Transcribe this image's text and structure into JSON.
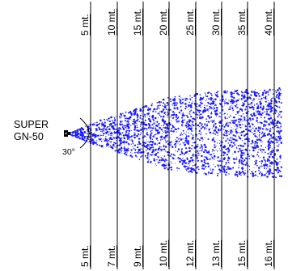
{
  "nozzle": {
    "name_line1": "SUPER",
    "name_line2": "GN-50",
    "angle_label": "30°"
  },
  "distances": [
    {
      "distance": "5 mt.",
      "width": "5 mt."
    },
    {
      "distance": "10 mt.",
      "width": "7 mt."
    },
    {
      "distance": "15 mt.",
      "width": "9 mt."
    },
    {
      "distance": "20 mt.",
      "width": "10 mt."
    },
    {
      "distance": "25 mt.",
      "width": "12 mt."
    },
    {
      "distance": "30 mt.",
      "width": "13 mt."
    },
    {
      "distance": "35 mt.",
      "width": "15 mt."
    },
    {
      "distance": "40 mt.",
      "width": "16 mt."
    }
  ],
  "colors": {
    "spray": "#1a1aff",
    "lines": "#000000"
  }
}
